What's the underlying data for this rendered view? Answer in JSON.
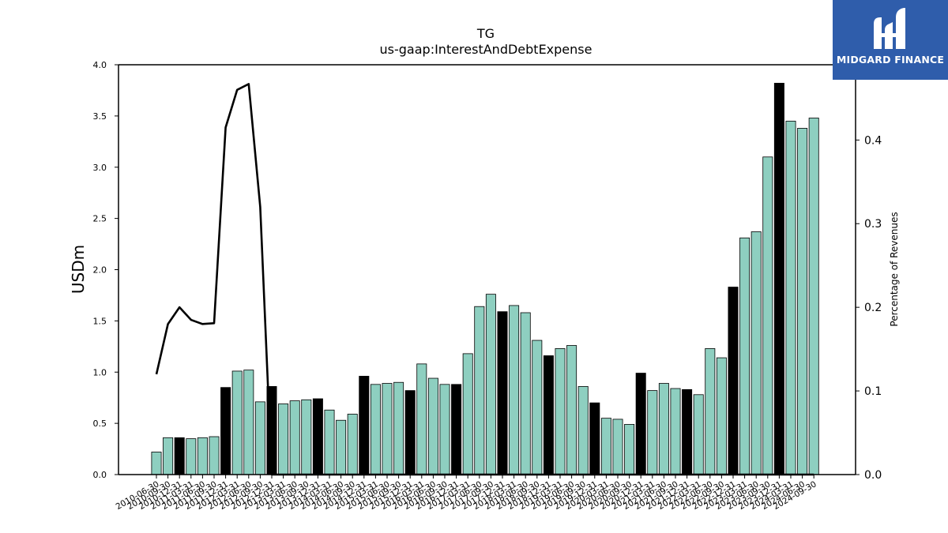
{
  "brand": {
    "name": "MIDGARD FINANCE",
    "color": "#2f5dab"
  },
  "chart_data": {
    "type": "bar",
    "title": "TG",
    "subtitle": "us-gaap:InterestAndDebtExpense",
    "ylabel": "USDm",
    "y2label": "Percentage of Revenues",
    "ylim": [
      0,
      4.0
    ],
    "y2lim": [
      0,
      0.49
    ],
    "yticks": [
      "0.0",
      "0.5",
      "1.0",
      "1.5",
      "2.0",
      "2.5",
      "3.0",
      "3.5",
      "4.0"
    ],
    "y2ticks": [
      "0.0",
      "0.1",
      "0.2",
      "0.3",
      "0.4"
    ],
    "bar_color": "#8ecfc0",
    "highlight_color": "#000000",
    "line_color": "#000000",
    "categories": [
      "2010-06-30",
      "2010-09-30",
      "2010-12-31",
      "2011-03-31",
      "2011-06-30",
      "2011-09-30",
      "2011-12-31",
      "2012-03-31",
      "2012-06-30",
      "2012-09-30",
      "2012-12-31",
      "2013-03-31",
      "2013-06-30",
      "2013-09-30",
      "2013-12-31",
      "2014-03-31",
      "2014-06-30",
      "2014-09-30",
      "2014-12-31",
      "2015-03-31",
      "2015-06-30",
      "2015-09-30",
      "2015-12-31",
      "2016-03-31",
      "2016-06-30",
      "2016-09-30",
      "2016-12-31",
      "2017-03-31",
      "2017-06-30",
      "2017-09-30",
      "2017-12-31",
      "2018-03-31",
      "2018-06-30",
      "2018-09-30",
      "2018-12-31",
      "2019-03-31",
      "2019-06-30",
      "2019-09-30",
      "2019-12-31",
      "2020-03-31",
      "2020-06-30",
      "2020-09-30",
      "2020-12-31",
      "2021-03-31",
      "2021-06-30",
      "2021-09-30",
      "2021-12-31",
      "2022-03-31",
      "2022-06-30",
      "2022-09-30",
      "2022-12-31",
      "2023-03-31",
      "2023-06-30",
      "2023-09-30",
      "2023-12-31",
      "2024-03-31",
      "2024-06-30",
      "2024-09-30"
    ],
    "x_tick_labels": [
      "2010-06-30",
      "2010-09-30",
      "2010-12-31",
      "2011-03-31",
      "2011-06-30",
      "2011-09-30",
      "2011-12-31",
      "2012-03-31",
      "2012-06-30",
      "2012-09-30",
      "2012-12-31",
      "2013-03-31",
      "2013-06-30",
      "2013-09-30",
      "2013-12-31",
      "2014-03-31",
      "2014-06-30",
      "2014-09-30",
      "2014-12-31",
      "2015-03-31",
      "2015-06-30",
      "2015-09-30",
      "2015-12-31",
      "2016-03-31",
      "2016-06-30",
      "2016-09-30",
      "2016-12-31",
      "2017-03-31",
      "2017-06-30",
      "2017-09-30",
      "2017-12-31",
      "2018-03-31",
      "2018-06-30",
      "2018-09-30",
      "2018-12-31",
      "2019-03-31",
      "2019-06-30",
      "2019-09-30",
      "2019-12-31",
      "2020-03-31",
      "2020-06-30",
      "2020-09-30",
      "2020-12-31",
      "2021-03-31",
      "2021-06-30",
      "2021-09-30",
      "2021-12-31",
      "2022-03-31",
      "2022-06-30",
      "2022-09-30",
      "2022-12-31",
      "2023-03-31",
      "2023-06-30",
      "2023-09-30",
      "2023-12-31",
      "2024-03-31",
      "2024-06-30",
      "2024-09-30"
    ],
    "values": [
      0.22,
      0.36,
      0.36,
      0.35,
      0.36,
      0.37,
      0.85,
      1.01,
      1.02,
      0.71,
      0.86,
      0.69,
      0.72,
      0.73,
      0.74,
      0.63,
      0.53,
      0.59,
      0.96,
      0.88,
      0.89,
      0.9,
      0.82,
      1.08,
      0.94,
      0.88,
      0.88,
      1.18,
      1.64,
      1.76,
      1.59,
      1.65,
      1.58,
      1.31,
      1.16,
      1.23,
      1.26,
      0.86,
      0.7,
      0.55,
      0.54,
      0.49,
      0.99,
      0.82,
      0.89,
      0.84,
      0.83,
      0.78,
      1.23,
      1.14,
      1.83,
      2.31,
      2.37,
      3.1,
      3.82,
      3.45,
      3.38,
      3.48
    ],
    "highlighted": [
      false,
      false,
      true,
      false,
      false,
      false,
      true,
      false,
      false,
      false,
      true,
      false,
      false,
      false,
      true,
      false,
      false,
      false,
      true,
      false,
      false,
      false,
      true,
      false,
      false,
      false,
      true,
      false,
      false,
      false,
      true,
      false,
      false,
      false,
      true,
      false,
      false,
      false,
      true,
      false,
      false,
      false,
      true,
      false,
      false,
      false,
      true,
      false,
      false,
      false,
      true,
      false,
      false,
      false,
      true,
      false,
      false,
      false
    ],
    "line_series": {
      "name": "Percentage of Revenues",
      "values": [
        0.12,
        0.18,
        0.2,
        0.185,
        0.18,
        0.181,
        0.415,
        0.46,
        0.467,
        0.32,
        0.0,
        0.0,
        0.0,
        0.0,
        0.0,
        0.0,
        0.0,
        0.0,
        0.0,
        0.0,
        0.0,
        0.0,
        0.0,
        0.0,
        0.0,
        0.0,
        0.0,
        0.0,
        0.0,
        0.0,
        0.0,
        0.0,
        0.0,
        0.0,
        0.0,
        0.0,
        0.0,
        0.0,
        0.0,
        0.0,
        0.0,
        0.0,
        0.0,
        0.0,
        0.0,
        0.0,
        0.0,
        0.0,
        0.0,
        0.0,
        0.0,
        0.0,
        0.0,
        0.0,
        0.0,
        0.0,
        0.0,
        0.0
      ]
    }
  }
}
